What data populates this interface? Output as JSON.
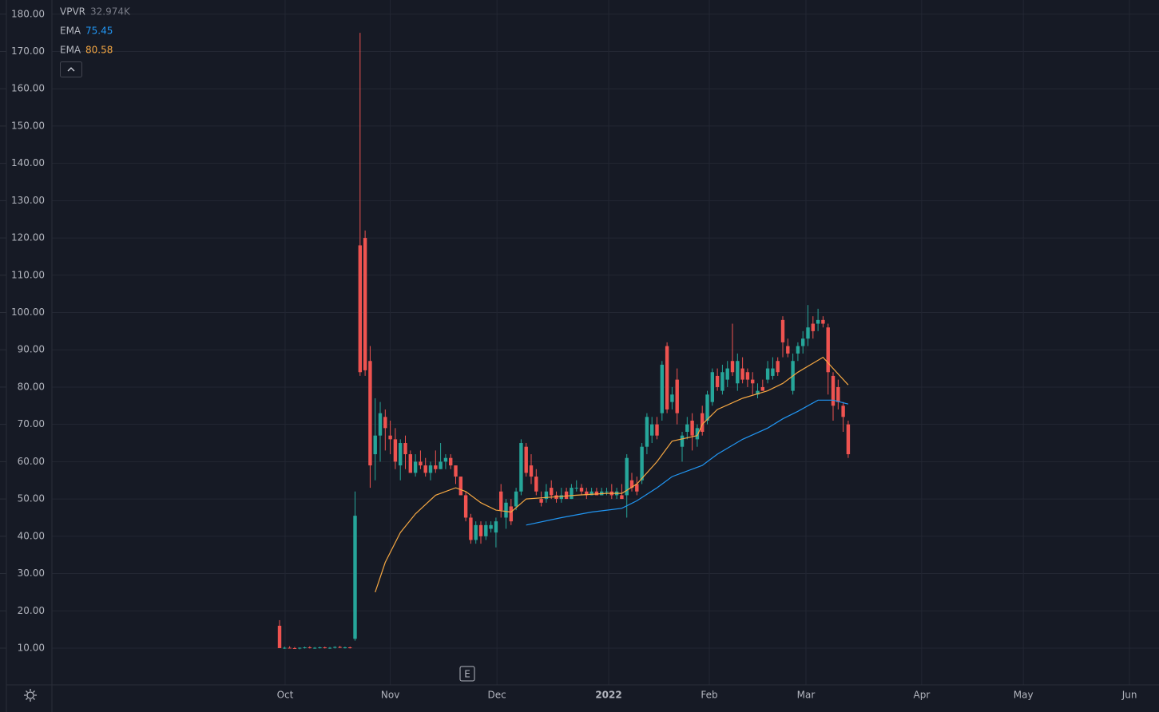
{
  "chart_data": {
    "type": "candlestick",
    "indicator": {
      "name": "VPVR",
      "value_label": "32.974K"
    },
    "up_color": "#26a69a",
    "down_color": "#ef5350",
    "candles": [
      [
        16,
        17.5,
        10,
        10
      ],
      [
        10,
        10.4,
        9.8,
        10.1
      ],
      [
        10.1,
        10.5,
        9.9,
        10
      ],
      [
        10,
        10.3,
        9.8,
        9.9
      ],
      [
        9.9,
        10.2,
        9.7,
        10.1
      ],
      [
        10.1,
        10.4,
        9.9,
        10.2
      ],
      [
        10.2,
        10.5,
        9.9,
        10
      ],
      [
        10,
        10.3,
        9.8,
        10.1
      ],
      [
        10.1,
        10.4,
        9.9,
        10.2
      ],
      [
        10.2,
        10.4,
        9.9,
        10
      ],
      [
        10,
        10.3,
        9.8,
        10.1
      ],
      [
        10.1,
        10.5,
        9.9,
        10.3
      ],
      [
        10.3,
        10.6,
        10,
        10.1
      ],
      [
        10.1,
        10.4,
        9.9,
        10.2
      ],
      [
        10.2,
        10.4,
        9.9,
        10
      ],
      [
        12.5,
        52,
        12,
        45.5
      ],
      [
        118,
        175,
        83,
        84
      ],
      [
        120,
        122,
        83,
        84.5
      ],
      [
        87,
        91,
        53,
        59
      ],
      [
        62,
        77,
        55,
        67
      ],
      [
        67,
        76,
        60,
        73
      ],
      [
        72,
        74,
        63,
        69
      ],
      [
        67,
        71,
        62,
        66
      ],
      [
        66,
        69,
        58,
        60
      ],
      [
        59,
        66,
        55,
        65
      ],
      [
        65,
        67,
        58,
        62
      ],
      [
        62,
        63,
        57,
        57
      ],
      [
        57,
        62,
        56,
        60
      ],
      [
        60,
        63,
        58,
        59
      ],
      [
        59,
        61,
        56,
        57
      ],
      [
        57,
        60,
        55,
        59
      ],
      [
        59,
        63,
        57,
        58
      ],
      [
        58,
        65,
        58,
        60
      ],
      [
        60,
        62,
        58,
        61
      ],
      [
        61,
        62,
        58,
        59
      ],
      [
        59,
        59,
        54,
        56
      ],
      [
        56,
        56,
        51,
        51
      ],
      [
        51,
        52,
        44,
        45
      ],
      [
        45,
        46,
        38,
        39
      ],
      [
        39,
        44,
        38,
        43
      ],
      [
        43,
        44,
        38,
        40
      ],
      [
        40,
        44,
        39,
        43
      ],
      [
        42,
        44,
        41,
        43
      ],
      [
        41,
        45,
        37,
        44
      ],
      [
        52,
        54,
        45,
        47
      ],
      [
        45,
        50,
        42,
        49
      ],
      [
        48,
        50,
        43,
        44
      ],
      [
        48,
        53,
        47,
        52
      ],
      [
        52,
        66,
        51,
        65
      ],
      [
        64,
        65,
        56,
        57
      ],
      [
        59,
        62,
        54,
        56
      ],
      [
        56,
        58,
        51,
        52
      ],
      [
        50,
        52,
        48,
        49
      ],
      [
        50,
        54,
        49,
        52
      ],
      [
        53,
        55,
        50,
        51
      ],
      [
        51,
        52,
        49,
        50
      ],
      [
        50,
        53,
        49,
        51
      ],
      [
        52,
        53,
        50,
        50
      ],
      [
        50,
        54,
        50,
        53
      ],
      [
        53,
        55,
        52,
        53
      ],
      [
        53,
        54,
        51,
        52
      ],
      [
        52,
        53,
        50,
        51
      ],
      [
        51,
        53,
        51,
        52
      ],
      [
        52,
        53,
        51,
        51
      ],
      [
        51,
        53,
        51,
        52
      ],
      [
        52,
        53,
        51,
        52
      ],
      [
        52,
        54,
        50,
        51
      ],
      [
        51,
        53,
        50,
        52
      ],
      [
        51,
        54,
        50,
        50
      ],
      [
        51,
        62,
        45,
        61
      ],
      [
        55,
        57,
        52,
        53
      ],
      [
        54,
        56,
        51,
        52
      ],
      [
        55,
        65,
        54,
        64
      ],
      [
        64,
        73,
        62,
        72
      ],
      [
        67,
        72,
        65,
        70
      ],
      [
        70,
        72,
        66,
        67
      ],
      [
        73,
        87,
        71,
        86
      ],
      [
        91,
        92,
        73,
        74
      ],
      [
        76,
        80,
        74,
        78
      ],
      [
        82,
        85,
        70,
        73
      ],
      [
        64,
        68,
        60,
        67
      ],
      [
        68,
        72,
        66,
        70
      ],
      [
        71,
        73,
        63,
        67
      ],
      [
        66,
        70,
        64,
        69
      ],
      [
        73,
        75,
        67,
        68
      ],
      [
        71,
        79,
        70,
        78
      ],
      [
        76,
        85,
        75,
        84
      ],
      [
        83,
        85,
        79,
        80
      ],
      [
        79,
        86,
        78,
        84
      ],
      [
        82,
        87,
        80,
        85
      ],
      [
        87,
        97,
        83,
        84
      ],
      [
        81,
        89,
        79,
        87
      ],
      [
        85,
        88,
        81,
        82
      ],
      [
        84,
        85,
        80,
        82
      ],
      [
        82,
        84,
        78,
        81
      ],
      [
        78,
        81,
        77,
        79
      ],
      [
        80,
        82,
        79,
        79
      ],
      [
        82,
        87,
        81,
        85
      ],
      [
        83,
        88,
        82,
        85
      ],
      [
        87,
        88,
        83,
        84
      ],
      [
        98,
        99,
        88,
        92
      ],
      [
        91,
        93,
        88,
        89
      ],
      [
        79,
        89,
        78,
        87
      ],
      [
        89,
        92,
        87,
        91
      ],
      [
        91,
        95,
        89,
        93
      ],
      [
        93,
        102,
        91,
        96
      ],
      [
        97,
        99,
        93,
        95
      ],
      [
        97,
        101,
        95,
        98
      ],
      [
        98,
        99,
        96,
        97
      ],
      [
        96,
        97,
        78,
        84
      ],
      [
        83,
        84,
        71,
        75
      ],
      [
        80,
        82,
        74,
        76
      ],
      [
        75,
        76,
        68,
        72
      ],
      [
        70,
        71,
        61,
        62
      ]
    ],
    "series": [
      {
        "name": "EMA",
        "color": "#2196f3",
        "x": [
          49,
          56,
          62,
          68,
          71,
          75,
          78,
          84,
          87,
          92,
          97,
          100,
          103,
          107,
          110,
          113
        ],
        "values": [
          43,
          45,
          46.5,
          47.5,
          49.5,
          53,
          56,
          59,
          62,
          66,
          69,
          71.5,
          73.5,
          76.5,
          76.5,
          75.45
        ]
      },
      {
        "name": "EMA",
        "color": "#f5a742",
        "x": [
          19,
          21,
          24,
          27,
          31,
          35,
          37,
          40,
          43,
          46,
          49,
          54,
          59,
          65,
          68,
          71,
          75,
          78,
          83,
          84,
          87,
          92,
          97,
          100,
          103,
          108,
          110,
          113
        ],
        "values": [
          25,
          33,
          41,
          46,
          51,
          53,
          52,
          49,
          47,
          46.5,
          50,
          50.5,
          51,
          51.5,
          51.5,
          54,
          60,
          65.5,
          67,
          70,
          74,
          77,
          79,
          81,
          84,
          88,
          85,
          80.58
        ]
      }
    ],
    "events": [
      {
        "label": "E",
        "x": 37.3
      }
    ],
    "xlim": [
      -45.24,
      174.76
    ],
    "xticks": [
      {
        "value": 1.1,
        "label": "Oct"
      },
      {
        "value": 22,
        "label": "Nov"
      },
      {
        "value": 43.2,
        "label": "Dec"
      },
      {
        "value": 65.4,
        "label": "2022"
      },
      {
        "value": 85.4,
        "label": "Feb"
      },
      {
        "value": 104.6,
        "label": "Mar"
      },
      {
        "value": 127.6,
        "label": "Apr"
      },
      {
        "value": 147.8,
        "label": "May"
      },
      {
        "value": 168.9,
        "label": "Jun"
      }
    ],
    "ylim": [
      0.15,
      183.8
    ],
    "yticks": [
      {
        "value": 10,
        "label": "10.00"
      },
      {
        "value": 20,
        "label": "20.00"
      },
      {
        "value": 30,
        "label": "30.00"
      },
      {
        "value": 40,
        "label": "40.00"
      },
      {
        "value": 50,
        "label": "50.00"
      },
      {
        "value": 60,
        "label": "60.00"
      },
      {
        "value": 70,
        "label": "70.00"
      },
      {
        "value": 80,
        "label": "80.00"
      },
      {
        "value": 90,
        "label": "90.00"
      },
      {
        "value": 100,
        "label": "100.00"
      },
      {
        "value": 110,
        "label": "110.00"
      },
      {
        "value": 120,
        "label": "120.00"
      },
      {
        "value": 130,
        "label": "130.00"
      },
      {
        "value": 140,
        "label": "140.00"
      },
      {
        "value": 150,
        "label": "150.00"
      },
      {
        "value": 160,
        "label": "160.00"
      },
      {
        "value": 170,
        "label": "170.00"
      },
      {
        "value": 180,
        "label": "180.00"
      }
    ],
    "grid": true
  }
}
